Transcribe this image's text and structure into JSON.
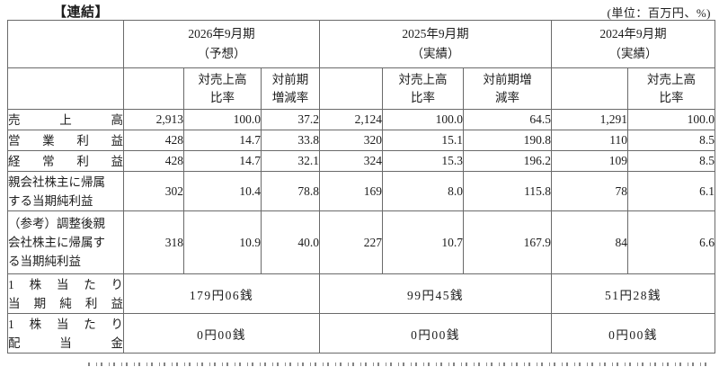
{
  "header": {
    "tag": "【連結】",
    "unit_note": "(単位：百万円、%)"
  },
  "table": {
    "year_headers": [
      "2026年9月期\n（予想）",
      "2025年9月期\n（実績）",
      "2024年9月期\n（実績）"
    ],
    "sub_headers": [
      "対売上高\n比率",
      "対前期\n増減率",
      "対売上高\n比率",
      "対前期増\n減率",
      "対売上高\n比率"
    ],
    "rows": [
      {
        "label": "売上高",
        "values": [
          "2,913",
          "100.0",
          "37.2",
          "2,124",
          "100.0",
          "64.5",
          "1,291",
          "100.0"
        ]
      },
      {
        "label": "営業利益",
        "values": [
          "428",
          "14.7",
          "33.8",
          "320",
          "15.1",
          "190.8",
          "110",
          "8.5"
        ]
      },
      {
        "label": "経常利益",
        "values": [
          "428",
          "14.7",
          "32.1",
          "324",
          "15.3",
          "196.2",
          "109",
          "8.5"
        ]
      },
      {
        "label": "親会社株主に帰属\nする当期純利益",
        "values": [
          "302",
          "10.4",
          "78.8",
          "169",
          "8.0",
          "115.8",
          "78",
          "6.1"
        ]
      },
      {
        "label": "（参考）調整後親\n会社株主に帰属す\nる当期純利益",
        "values": [
          "318",
          "10.9",
          "40.0",
          "227",
          "10.7",
          "167.9",
          "84",
          "6.6"
        ]
      }
    ],
    "per_share_rows": [
      {
        "label_lines": [
          "1株当たり",
          "当期純利益"
        ],
        "values": [
          "179円06銭",
          "99円45銭",
          "51円28銭"
        ]
      },
      {
        "label_lines": [
          "1株当たり",
          "配当金"
        ],
        "values": [
          "0円00銭",
          "0円00銭",
          "0円00銭"
        ]
      }
    ]
  }
}
